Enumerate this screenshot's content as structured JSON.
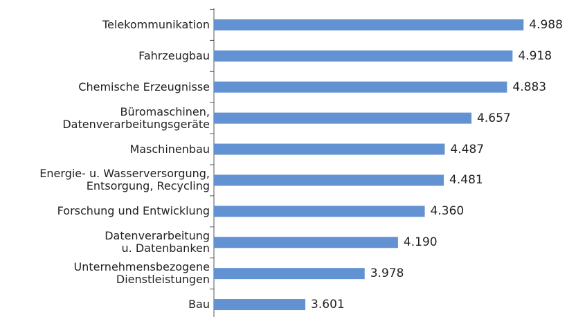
{
  "chart_data": {
    "type": "bar",
    "orientation": "horizontal",
    "categories": [
      "Telekommunikation",
      "Fahrzeugbau",
      "Chemische Erzeugnisse",
      "Büromaschinen,\nDatenverarbeitungsgeräte",
      "Maschinenbau",
      "Energie- u. Wasserversorgung,\nEntsorgung, Recycling",
      "Forschung und Entwicklung",
      "Datenverarbeitung\nu. Datenbanken",
      "Unternehmensbezogene\nDienstleistungen",
      "Bau"
    ],
    "values": [
      4988,
      4918,
      4883,
      4657,
      4487,
      4481,
      4360,
      4190,
      3978,
      3601
    ],
    "value_labels": [
      "4.988",
      "4.918",
      "4.883",
      "4.657",
      "4.487",
      "4.481",
      "4.360",
      "4.190",
      "3.978",
      "3.601"
    ],
    "color": "#6392d3",
    "xlim": [
      3020,
      5000
    ]
  }
}
